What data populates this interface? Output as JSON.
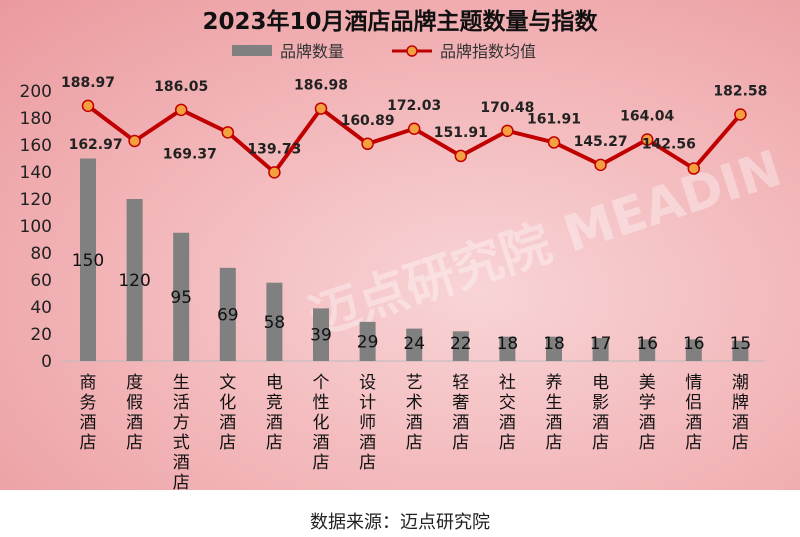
{
  "chart_data": {
    "type": "bar+line",
    "title": "2023年10月酒店品牌主题数量与指数",
    "categories": [
      "商务酒店",
      "度假酒店",
      "生活方式酒店",
      "文化酒店",
      "电竞酒店",
      "个性化酒店",
      "设计师酒店",
      "艺术酒店",
      "轻奢酒店",
      "社交酒店",
      "养生酒店",
      "电影酒店",
      "美学酒店",
      "情侣酒店",
      "潮牌酒店"
    ],
    "series": [
      {
        "name": "品牌数量",
        "type": "bar",
        "color": "#808080",
        "values": [
          150,
          120,
          95,
          69,
          58,
          39,
          29,
          24,
          22,
          18,
          18,
          17,
          16,
          16,
          15
        ]
      },
      {
        "name": "品牌指数均值",
        "type": "line",
        "color": "#c00000",
        "marker_color": "#f4a040",
        "values": [
          188.97,
          162.97,
          186.05,
          169.37,
          139.73,
          186.98,
          160.89,
          172.03,
          151.91,
          170.48,
          161.91,
          145.27,
          164.04,
          142.56,
          182.58
        ]
      }
    ],
    "ylim": [
      0,
      200
    ],
    "yticks": [
      0,
      20,
      40,
      60,
      80,
      100,
      120,
      140,
      160,
      180,
      200
    ],
    "grid": false,
    "legend": "top",
    "watermark": "迈点研究院 MEADIN ACADEMY"
  },
  "source": "数据来源：迈点研究院"
}
